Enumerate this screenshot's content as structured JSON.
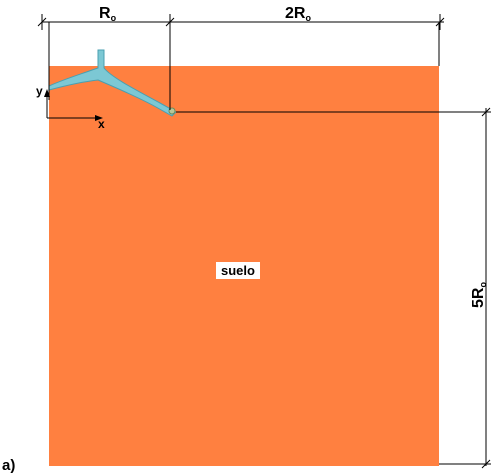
{
  "figure": {
    "panel_label": "a)",
    "region_label": "suelo",
    "dimensions": {
      "top_left": {
        "base": "R",
        "sub": "o"
      },
      "top_right": {
        "base": "2R",
        "sub": "o"
      },
      "right": {
        "base": "5R",
        "sub": "o"
      }
    },
    "axes": {
      "x": "x",
      "y": "y"
    }
  },
  "colors": {
    "soil": "#FF8040",
    "structure": "#7CC8D4",
    "structure_edge": "#4A9FB0",
    "lines": "#000000"
  }
}
